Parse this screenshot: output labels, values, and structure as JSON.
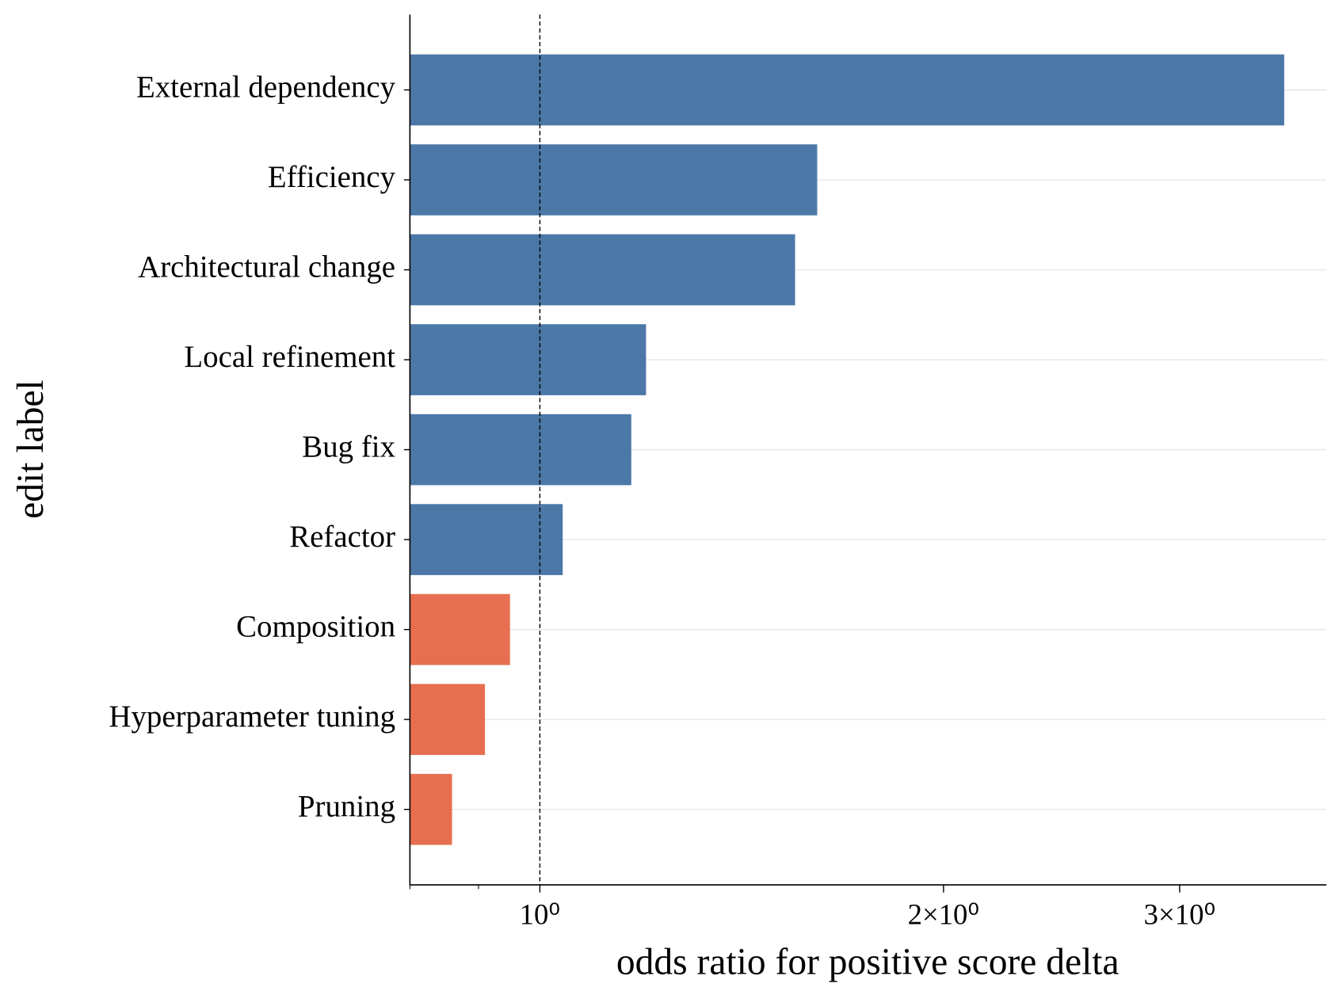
{
  "chart_data": {
    "type": "barh",
    "xlabel": "odds ratio for positive score delta",
    "ylabel": "edit label",
    "categories": [
      "External dependency",
      "Efficiency",
      "Architectural change",
      "Local refinement",
      "Bug fix",
      "Refactor",
      "Composition",
      "Hyperparameter tuning",
      "Pruning"
    ],
    "values": [
      3.59,
      1.61,
      1.55,
      1.2,
      1.17,
      1.04,
      0.95,
      0.91,
      0.86
    ],
    "colors": [
      "#4c78a8",
      "#4c78a8",
      "#4c78a8",
      "#4c78a8",
      "#4c78a8",
      "#4c78a8",
      "#e76f51",
      "#e76f51",
      "#e76f51"
    ],
    "xscale": "log",
    "xlim": [
      0.8,
      3.86
    ],
    "xticks": [
      {
        "value": 1,
        "label": "10⁰"
      },
      {
        "value": 2,
        "label": "2×10⁰"
      },
      {
        "value": 3,
        "label": "3×10⁰"
      }
    ],
    "xminorticks": [
      0.8,
      0.9
    ],
    "refline": 1,
    "grid": true
  }
}
